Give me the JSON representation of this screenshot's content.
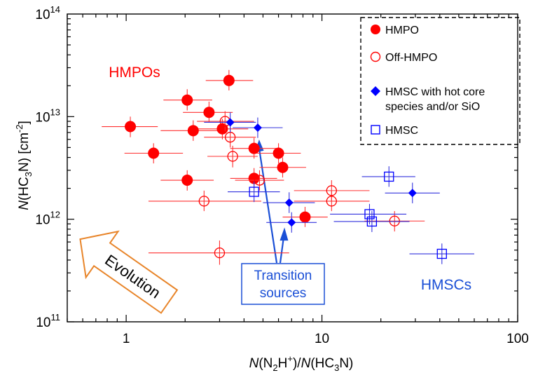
{
  "colors": {
    "hmpo": "#ff0000",
    "hmsc": "#0000ff",
    "hmsc_errorbar": "#3333dd",
    "evolution_arrow": "#e8852a",
    "axes": "#000000"
  },
  "chart_data": {
    "type": "scatter",
    "title": "",
    "x_scale": "log",
    "y_scale": "log",
    "xlim": [
      0.5,
      100
    ],
    "ylim": [
      100000000000.0,
      100000000000000.0
    ],
    "grid": false,
    "legend_position": "top-right",
    "x_ticks": [
      {
        "value": 1,
        "label": "1"
      },
      {
        "value": 10,
        "label": "10"
      },
      {
        "value": 100,
        "label": "100"
      }
    ],
    "y_ticks": [
      {
        "value": 100000000000.0,
        "mant": "10",
        "exp": "11"
      },
      {
        "value": 1000000000000.0,
        "mant": "10",
        "exp": "12"
      },
      {
        "value": 10000000000000.0,
        "mant": "10",
        "exp": "13"
      },
      {
        "value": 100000000000000.0,
        "mant": "10",
        "exp": "14"
      }
    ],
    "xlabel": {
      "italic_n1": "N",
      "open1": "(N",
      "sub1": "2",
      "mid1": "H",
      "sup1": "+",
      "close1": ")/",
      "italic_n2": "N",
      "open2": "(HC",
      "sub2": "3",
      "close2": "N)"
    },
    "ylabel": {
      "italic_n": "N",
      "open": "(HC",
      "sub": "3",
      "close": "N) [cm",
      "sup": "-2",
      "end": "]"
    },
    "legend": {
      "items": [
        {
          "label": "HMPO",
          "marker": "filled-circle",
          "color": "#ff0000"
        },
        {
          "label": "Off-HMPO",
          "marker": "open-circle",
          "color": "#ff0000"
        },
        {
          "label_line1": "HMSC with hot core",
          "label_line2": "species and/or SiO",
          "marker": "filled-diamond",
          "color": "#0000ff"
        },
        {
          "label": "HMSC",
          "marker": "open-square",
          "color": "#0000ff"
        }
      ]
    },
    "annotations": {
      "hmpos": "HMPOs",
      "hmscs": "HMSCs",
      "transition_line1": "Transition",
      "transition_line2": "sources",
      "evolution": "Evolution"
    },
    "series": [
      {
        "name": "HMPO",
        "marker": "filled-circle",
        "color": "#ff0000",
        "points": [
          {
            "x": 1.05,
            "y": 8000000000000.0,
            "xerr": [
              0.75,
              1.45
            ],
            "yerr": [
              6300000000000.0,
              10000000000000.0
            ]
          },
          {
            "x": 1.38,
            "y": 4400000000000.0,
            "xerr": [
              0.98,
              1.95
            ],
            "yerr": [
              3500000000000.0,
              5500000000000.0
            ]
          },
          {
            "x": 2.05,
            "y": 14500000000000.0,
            "xerr": [
              1.55,
              2.75
            ],
            "yerr": [
              11500000000000.0,
              18500000000000.0
            ]
          },
          {
            "x": 2.05,
            "y": 2400000000000.0,
            "xerr": [
              1.5,
              2.8
            ],
            "yerr": [
              1900000000000.0,
              3000000000000.0
            ]
          },
          {
            "x": 2.2,
            "y": 7300000000000.0,
            "xerr": [
              1.5,
              3.2
            ],
            "yerr": [
              5800000000000.0,
              9200000000000.0
            ]
          },
          {
            "x": 2.65,
            "y": 11000000000000.0,
            "xerr": [
              1.95,
              3.5
            ],
            "yerr": [
              8800000000000.0,
              14000000000000.0
            ]
          },
          {
            "x": 3.1,
            "y": 7600000000000.0,
            "xerr": [
              2.25,
              4.2
            ],
            "yerr": [
              6000000000000.0,
              9500000000000.0
            ]
          },
          {
            "x": 3.35,
            "y": 22500000000000.0,
            "xerr": [
              2.55,
              4.45
            ],
            "yerr": [
              18000000000000.0,
              28500000000000.0
            ]
          },
          {
            "x": 4.5,
            "y": 4900000000000.0,
            "xerr": [
              3.4,
              5.9
            ],
            "yerr": [
              3900000000000.0,
              6200000000000.0
            ]
          },
          {
            "x": 4.5,
            "y": 2500000000000.0,
            "xerr": [
              3.4,
              5.9
            ],
            "yerr": [
              2000000000000.0,
              3150000000000.0
            ]
          },
          {
            "x": 6.0,
            "y": 4400000000000.0,
            "xerr": [
              4.6,
              7.8
            ],
            "yerr": [
              3500000000000.0,
              5500000000000.0
            ]
          },
          {
            "x": 6.3,
            "y": 3200000000000.0,
            "xerr": [
              4.8,
              8.3
            ],
            "yerr": [
              2550000000000.0,
              4000000000000.0
            ]
          },
          {
            "x": 8.2,
            "y": 1050000000000.0,
            "xerr": [
              6.3,
              10.7
            ],
            "yerr": [
              840000000000.0,
              1320000000000.0
            ]
          }
        ]
      },
      {
        "name": "Off-HMPO",
        "marker": "open-circle",
        "color": "#ff0000",
        "points": [
          {
            "x": 2.5,
            "y": 1500000000000.0,
            "xerr": [
              1.3,
              4.9
            ],
            "yerr": [
              1200000000000.0,
              1900000000000.0
            ]
          },
          {
            "x": 3.0,
            "y": 470000000000.0,
            "xerr": [
              1.3,
              6.8
            ],
            "yerr": [
              360000000000.0,
              620000000000.0
            ]
          },
          {
            "x": 3.2,
            "y": 9000000000000.0,
            "xerr": [
              2.3,
              4.5
            ],
            "yerr": [
              7200000000000.0,
              11300000000000.0
            ]
          },
          {
            "x": 3.4,
            "y": 6300000000000.0,
            "xerr": [
              2.5,
              4.6
            ],
            "yerr": [
              5000000000000.0,
              7900000000000.0
            ]
          },
          {
            "x": 3.5,
            "y": 4100000000000.0,
            "xerr": [
              2.6,
              4.7
            ],
            "yerr": [
              3200000000000.0,
              5200000000000.0
            ]
          },
          {
            "x": 4.8,
            "y": 2400000000000.0,
            "xerr": [
              3.6,
              6.4
            ],
            "yerr": [
              1900000000000.0,
              3000000000000.0
            ]
          },
          {
            "x": 11.2,
            "y": 1900000000000.0,
            "xerr": [
              7.2,
              17.5
            ],
            "yerr": [
              1500000000000.0,
              2400000000000.0
            ]
          },
          {
            "x": 11.2,
            "y": 1500000000000.0,
            "xerr": [
              7.2,
              17.5
            ],
            "yerr": [
              1200000000000.0,
              1900000000000.0
            ]
          },
          {
            "x": 23.5,
            "y": 960000000000.0,
            "xerr": [
              16.5,
              33.5
            ],
            "yerr": [
              760000000000.0,
              1200000000000.0
            ]
          }
        ]
      },
      {
        "name": "HMSC with hot core species and/or SiO",
        "marker": "filled-diamond",
        "color": "#0000ff",
        "points": [
          {
            "x": 3.4,
            "y": 8800000000000.0,
            "xerr": [
              2.5,
              4.6
            ],
            "yerr": [
              7000000000000.0,
              11000000000000.0
            ]
          },
          {
            "x": 4.7,
            "y": 7800000000000.0,
            "xerr": [
              3.5,
              6.3
            ],
            "yerr": [
              6200000000000.0,
              9800000000000.0
            ]
          },
          {
            "x": 6.8,
            "y": 1450000000000.0,
            "xerr": [
              5.0,
              9.2
            ],
            "yerr": [
              1150000000000.0,
              1830000000000.0
            ]
          },
          {
            "x": 7.0,
            "y": 930000000000.0,
            "xerr": [
              5.2,
              9.4
            ],
            "yerr": [
              740000000000.0,
              1170000000000.0
            ]
          },
          {
            "x": 29.0,
            "y": 1800000000000.0,
            "xerr": [
              21.0,
              40.0
            ],
            "yerr": [
              1430000000000.0,
              2270000000000.0
            ]
          }
        ]
      },
      {
        "name": "HMSC",
        "marker": "open-square",
        "color": "#0000ff",
        "points": [
          {
            "x": 4.5,
            "y": 1850000000000.0,
            "xerr": [
              3.3,
              6.1
            ],
            "yerr": [
              1470000000000.0,
              2330000000000.0
            ]
          },
          {
            "x": 17.5,
            "y": 1120000000000.0,
            "xerr": [
              11.0,
              27.0
            ],
            "yerr": [
              890000000000.0,
              1410000000000.0
            ]
          },
          {
            "x": 18.0,
            "y": 950000000000.0,
            "xerr": [
              11.5,
              28.0
            ],
            "yerr": [
              750000000000.0,
              1200000000000.0
            ]
          },
          {
            "x": 22.0,
            "y": 2600000000000.0,
            "xerr": [
              16.0,
              30.0
            ],
            "yerr": [
              2070000000000.0,
              3280000000000.0
            ]
          },
          {
            "x": 41.0,
            "y": 460000000000.0,
            "xerr": [
              28.0,
              60.0
            ],
            "yerr": [
              365000000000.0,
              580000000000.0
            ]
          }
        ]
      }
    ]
  }
}
